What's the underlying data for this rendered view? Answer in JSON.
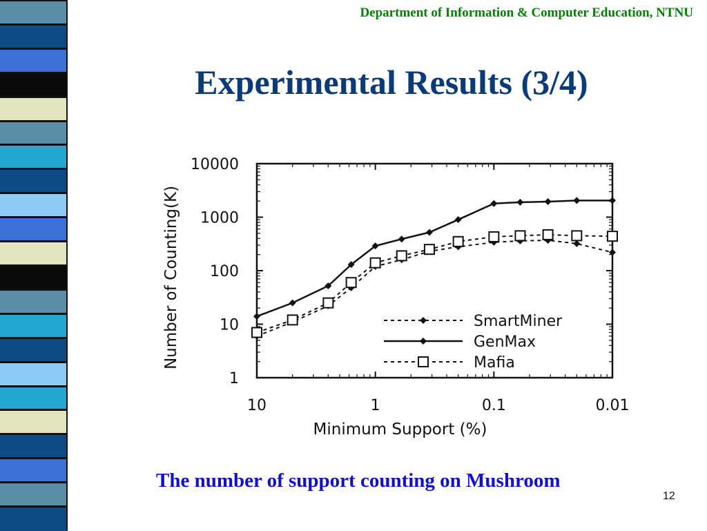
{
  "header": {
    "text": "Department of Information & Computer Education, NTNU"
  },
  "slide": {
    "title": "Experimental Results (3/4)",
    "caption": "The number of support counting on Mushroom",
    "page_number": "12"
  },
  "chart_data": {
    "type": "line",
    "xlabel": "Minimum Support (%)",
    "ylabel": "Number of Counting(K)",
    "x_scale": "log-reversed",
    "y_scale": "log",
    "xlim": [
      10,
      0.01
    ],
    "ylim": [
      1,
      10000
    ],
    "x_ticks": [
      10,
      1,
      0.1,
      0.01
    ],
    "x_tick_labels": [
      "10",
      "1",
      "0.1",
      "0.01"
    ],
    "y_ticks": [
      1,
      10,
      100,
      1000,
      10000
    ],
    "y_tick_labels": [
      "1",
      "10",
      "100",
      "1000",
      "10000"
    ],
    "legend_position": "lower-right",
    "x": [
      10,
      5,
      2.5,
      1.6,
      1,
      0.6,
      0.35,
      0.2,
      0.1,
      0.06,
      0.035,
      0.02,
      0.01
    ],
    "series": [
      {
        "name": "SmartMiner",
        "style": "dashed",
        "marker": "diamond",
        "values": [
          6,
          11,
          22,
          48,
          120,
          160,
          230,
          280,
          340,
          360,
          370,
          320,
          220
        ]
      },
      {
        "name": "GenMax",
        "style": "solid",
        "marker": "diamond",
        "values": [
          14,
          25,
          52,
          130,
          290,
          390,
          520,
          900,
          1800,
          1900,
          1950,
          2050,
          2050
        ]
      },
      {
        "name": "Mafia",
        "style": "dashed",
        "marker": "square",
        "values": [
          7,
          12,
          25,
          60,
          140,
          190,
          250,
          350,
          430,
          450,
          470,
          450,
          440
        ]
      }
    ]
  }
}
